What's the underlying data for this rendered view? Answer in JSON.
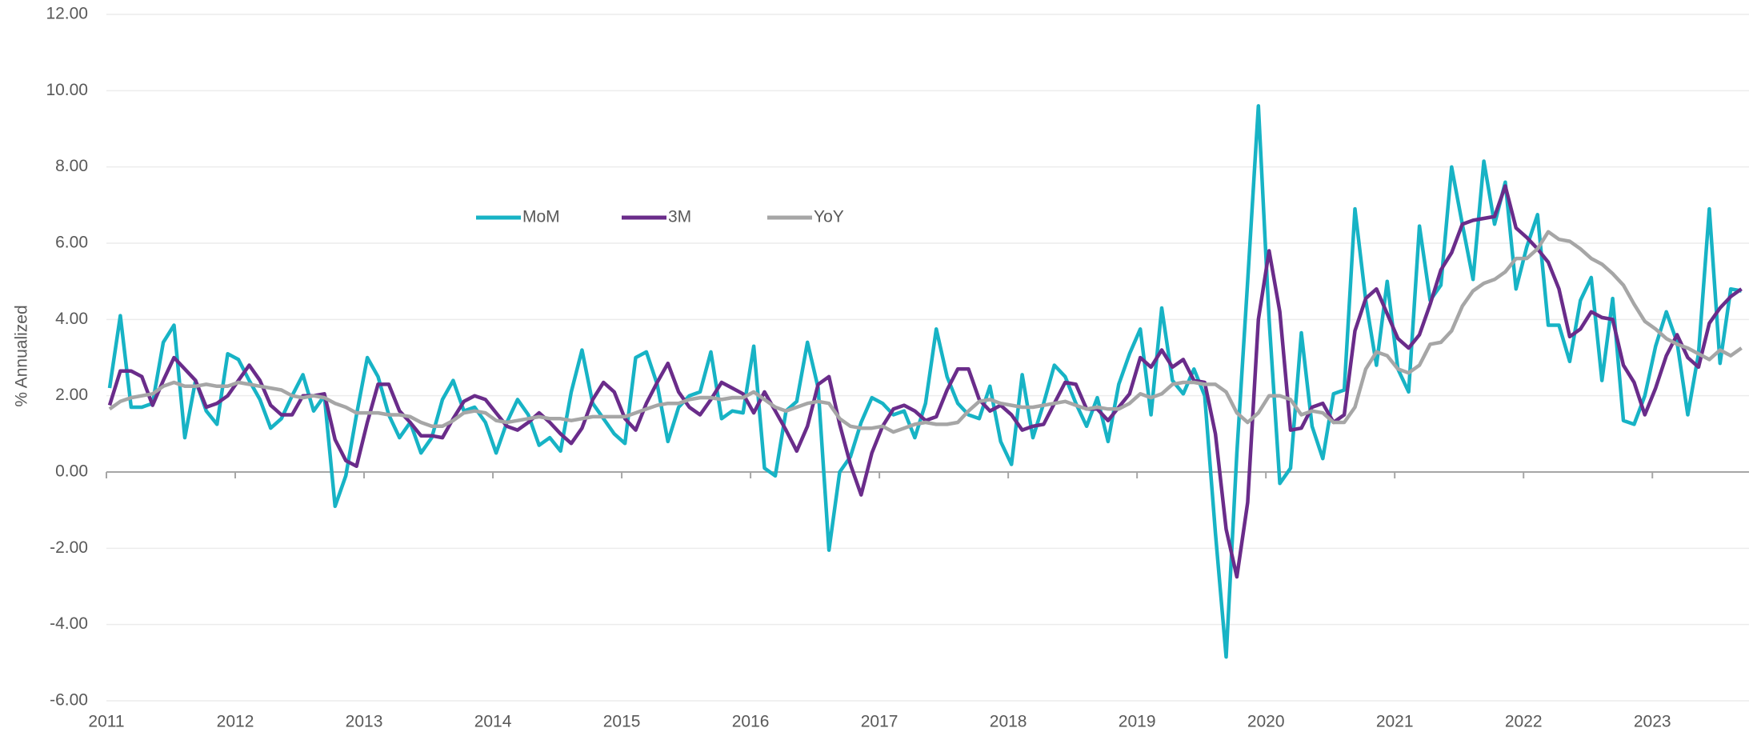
{
  "chart_data": {
    "type": "line",
    "y_label": "% Annualized",
    "categories": [
      "2011",
      null,
      null,
      null,
      null,
      null,
      null,
      null,
      null,
      null,
      null,
      null,
      "2012",
      null,
      null,
      null,
      null,
      null,
      null,
      null,
      null,
      null,
      null,
      null,
      "2013",
      null,
      null,
      null,
      null,
      null,
      null,
      null,
      null,
      null,
      null,
      null,
      "2014",
      null,
      null,
      null,
      null,
      null,
      null,
      null,
      null,
      null,
      null,
      null,
      "2015",
      null,
      null,
      null,
      null,
      null,
      null,
      null,
      null,
      null,
      null,
      null,
      "2016",
      null,
      null,
      null,
      null,
      null,
      null,
      null,
      null,
      null,
      null,
      null,
      "2017",
      null,
      null,
      null,
      null,
      null,
      null,
      null,
      null,
      null,
      null,
      null,
      "2018",
      null,
      null,
      null,
      null,
      null,
      null,
      null,
      null,
      null,
      null,
      null,
      "2019",
      null,
      null,
      null,
      null,
      null,
      null,
      null,
      null,
      null,
      null,
      null,
      "2020",
      null,
      null,
      null,
      null,
      null,
      null,
      null,
      null,
      null,
      null,
      null,
      "2021",
      null,
      null,
      null,
      null,
      null,
      null,
      null,
      null,
      null,
      null,
      null,
      "2022",
      null,
      null,
      null,
      null,
      null,
      null,
      null,
      null,
      null,
      null,
      null,
      "2023",
      null,
      null,
      null,
      null,
      null,
      null,
      null,
      null
    ],
    "series": [
      {
        "name": "MoM",
        "color": "#17b3c5",
        "values": [
          2.2,
          4.1,
          1.7,
          1.7,
          1.8,
          3.4,
          3.85,
          0.9,
          2.4,
          1.6,
          1.25,
          3.1,
          2.95,
          2.4,
          1.9,
          1.15,
          1.4,
          2.0,
          2.55,
          1.6,
          2.0,
          -0.9,
          -0.1,
          1.5,
          3.0,
          2.5,
          1.5,
          0.9,
          1.3,
          0.5,
          0.9,
          1.9,
          2.4,
          1.6,
          1.7,
          1.3,
          0.5,
          1.3,
          1.9,
          1.5,
          0.7,
          0.9,
          0.55,
          2.1,
          3.2,
          1.8,
          1.4,
          1.0,
          0.75,
          3.0,
          3.15,
          2.3,
          0.8,
          1.7,
          2.0,
          2.1,
          3.15,
          1.4,
          1.6,
          1.55,
          3.3,
          0.1,
          -0.1,
          1.6,
          1.85,
          3.4,
          2.2,
          -2.05,
          0.0,
          0.4,
          1.3,
          1.95,
          1.8,
          1.5,
          1.6,
          0.9,
          1.8,
          3.75,
          2.5,
          1.8,
          1.5,
          1.4,
          2.25,
          0.8,
          0.2,
          2.55,
          0.9,
          1.8,
          2.8,
          2.5,
          1.8,
          1.2,
          1.95,
          0.8,
          2.3,
          3.1,
          3.75,
          1.5,
          4.3,
          2.4,
          2.05,
          2.7,
          2.0,
          -1.6,
          -4.85,
          0.5,
          5.0,
          9.6,
          4.0,
          -0.3,
          0.1,
          3.65,
          1.2,
          0.35,
          2.05,
          2.15,
          6.9,
          4.5,
          2.8,
          5.0,
          2.7,
          2.1,
          6.45,
          4.5,
          4.9,
          8.0,
          6.5,
          5.05,
          8.15,
          6.5,
          7.6,
          4.8,
          5.9,
          6.75,
          3.85,
          3.85,
          2.9,
          4.5,
          5.1,
          2.4,
          4.55,
          1.35,
          1.25,
          2.0,
          3.3,
          4.2,
          3.4,
          1.5,
          3.1,
          6.9,
          2.85,
          4.8,
          4.75
        ]
      },
      {
        "name": "3M",
        "color": "#6a2c8a",
        "values": [
          1.75,
          2.65,
          2.65,
          2.5,
          1.75,
          2.4,
          3.0,
          2.7,
          2.4,
          1.7,
          1.8,
          2.0,
          2.4,
          2.8,
          2.4,
          1.75,
          1.5,
          1.5,
          2.0,
          2.0,
          2.05,
          0.85,
          0.3,
          0.15,
          1.3,
          2.3,
          2.3,
          1.6,
          1.3,
          0.95,
          0.95,
          0.9,
          1.4,
          1.85,
          2.0,
          1.9,
          1.55,
          1.2,
          1.1,
          1.3,
          1.55,
          1.3,
          1.0,
          0.75,
          1.15,
          1.9,
          2.35,
          2.1,
          1.4,
          1.1,
          1.8,
          2.35,
          2.85,
          2.1,
          1.7,
          1.5,
          1.9,
          2.35,
          2.2,
          2.05,
          1.55,
          2.1,
          1.6,
          1.1,
          0.55,
          1.2,
          2.3,
          2.5,
          1.25,
          0.2,
          -0.6,
          0.5,
          1.2,
          1.65,
          1.75,
          1.6,
          1.35,
          1.45,
          2.15,
          2.7,
          2.7,
          1.9,
          1.6,
          1.75,
          1.5,
          1.1,
          1.2,
          1.25,
          1.8,
          2.35,
          2.3,
          1.65,
          1.65,
          1.35,
          1.7,
          2.05,
          3.0,
          2.75,
          3.2,
          2.75,
          2.95,
          2.4,
          2.35,
          1.0,
          -1.5,
          -2.75,
          -0.8,
          4.0,
          5.8,
          4.2,
          1.1,
          1.15,
          1.7,
          1.8,
          1.3,
          1.5,
          3.7,
          4.55,
          4.8,
          4.15,
          3.5,
          3.25,
          3.6,
          4.4,
          5.3,
          5.75,
          6.5,
          6.6,
          6.65,
          6.7,
          7.5,
          6.4,
          6.15,
          5.85,
          5.5,
          4.8,
          3.55,
          3.75,
          4.2,
          4.05,
          4.0,
          2.8,
          2.35,
          1.5,
          2.2,
          3.05,
          3.6,
          3.0,
          2.75,
          3.9,
          4.3,
          4.6,
          4.8
        ]
      },
      {
        "name": "YoY",
        "color": "#a6a6a6",
        "values": [
          1.65,
          1.85,
          1.95,
          2.0,
          2.05,
          2.25,
          2.35,
          2.25,
          2.25,
          2.3,
          2.25,
          2.25,
          2.35,
          2.3,
          2.25,
          2.2,
          2.15,
          2.0,
          1.95,
          2.0,
          1.95,
          1.8,
          1.7,
          1.55,
          1.55,
          1.55,
          1.5,
          1.5,
          1.45,
          1.3,
          1.2,
          1.2,
          1.35,
          1.55,
          1.6,
          1.55,
          1.35,
          1.3,
          1.35,
          1.4,
          1.45,
          1.4,
          1.4,
          1.35,
          1.4,
          1.45,
          1.45,
          1.45,
          1.45,
          1.55,
          1.65,
          1.75,
          1.8,
          1.8,
          1.9,
          1.95,
          1.95,
          1.9,
          1.95,
          1.95,
          2.1,
          1.9,
          1.7,
          1.6,
          1.7,
          1.8,
          1.85,
          1.8,
          1.4,
          1.2,
          1.15,
          1.15,
          1.2,
          1.05,
          1.15,
          1.25,
          1.3,
          1.25,
          1.25,
          1.3,
          1.6,
          1.85,
          1.9,
          1.8,
          1.75,
          1.7,
          1.7,
          1.75,
          1.8,
          1.85,
          1.75,
          1.65,
          1.7,
          1.65,
          1.65,
          1.8,
          2.05,
          1.95,
          2.05,
          2.3,
          2.35,
          2.35,
          2.3,
          2.3,
          2.1,
          1.55,
          1.3,
          1.55,
          2.0,
          2.0,
          1.9,
          1.5,
          1.6,
          1.55,
          1.3,
          1.3,
          1.7,
          2.7,
          3.15,
          3.05,
          2.7,
          2.6,
          2.8,
          3.35,
          3.4,
          3.7,
          4.35,
          4.75,
          4.95,
          5.05,
          5.25,
          5.6,
          5.6,
          5.85,
          6.3,
          6.1,
          6.05,
          5.85,
          5.6,
          5.45,
          5.2,
          4.9,
          4.4,
          3.95,
          3.75,
          3.5,
          3.35,
          3.25,
          3.1,
          2.95,
          3.2,
          3.05,
          3.25
        ]
      }
    ],
    "ylim": [
      -6,
      12
    ],
    "yticks": [
      {
        "value": -6,
        "label": "-6.00"
      },
      {
        "value": -4,
        "label": "-4.00"
      },
      {
        "value": -2,
        "label": "-2.00"
      },
      {
        "value": 0,
        "label": "0.00"
      },
      {
        "value": 2,
        "label": "2.00"
      },
      {
        "value": 4,
        "label": "4.00"
      },
      {
        "value": 6,
        "label": "6.00"
      },
      {
        "value": 8,
        "label": "8.00"
      },
      {
        "value": 10,
        "label": "10.00"
      },
      {
        "value": 12,
        "label": "12.00"
      }
    ],
    "grid": true,
    "legend": "upper left"
  }
}
